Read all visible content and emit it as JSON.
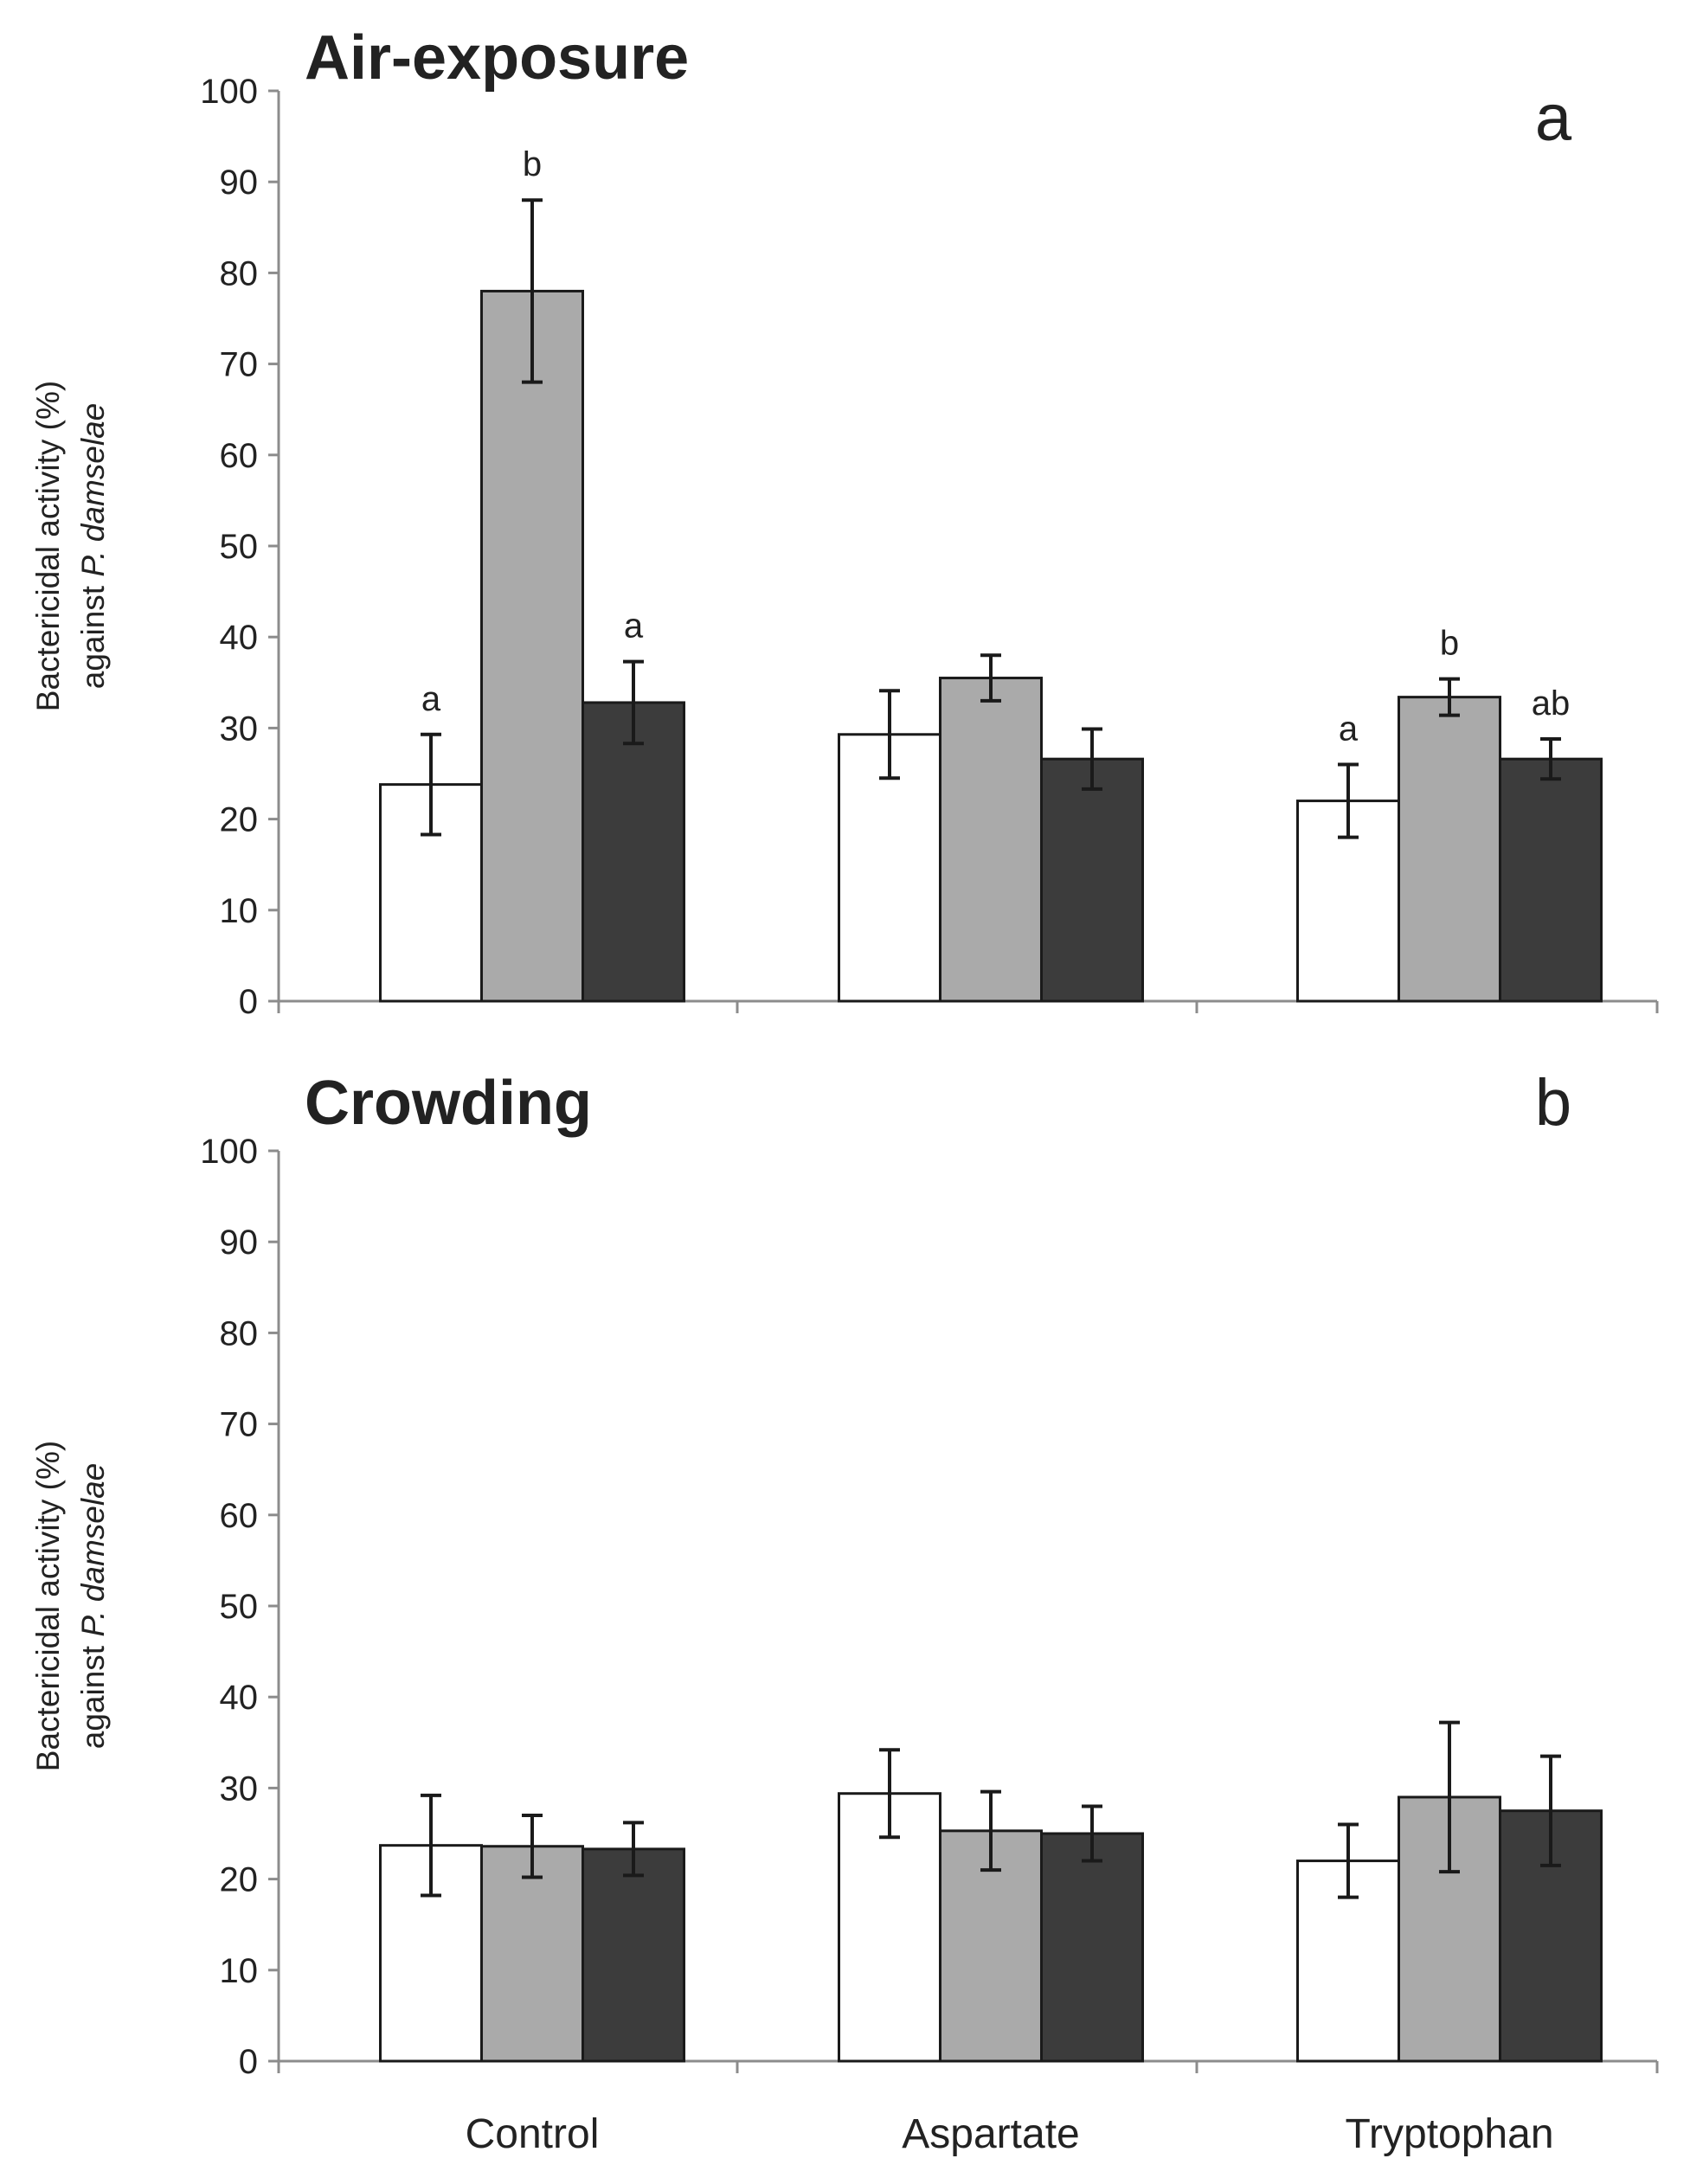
{
  "chart_data": [
    {
      "type": "bar",
      "title": "Air-exposure",
      "panel_label": "a",
      "ylabel_line1": "Bactericidal activity (%)",
      "ylabel_line2_prefix": "against ",
      "ylabel_line2_italic": "P. damselae",
      "ylim": [
        0,
        100
      ],
      "yticks": [
        "0",
        "10",
        "20",
        "30",
        "40",
        "50",
        "60",
        "70",
        "80",
        "90",
        "100"
      ],
      "categories": [
        "Control",
        "Aspartate",
        "Tryptophan"
      ],
      "series": [
        {
          "color": "#ffffff",
          "values": [
            23.8,
            29.3,
            22.0
          ],
          "errors": [
            5.5,
            4.8,
            4.0
          ],
          "sig": [
            "a",
            "",
            "a"
          ]
        },
        {
          "color": "#aaaaaa",
          "values": [
            78.0,
            35.5,
            33.4
          ],
          "errors": [
            10.0,
            2.5,
            2.0
          ],
          "sig": [
            "b",
            "",
            "b"
          ]
        },
        {
          "color": "#3c3c3c",
          "values": [
            32.8,
            26.6,
            26.6
          ],
          "errors": [
            4.5,
            3.3,
            2.2
          ],
          "sig": [
            "a",
            "",
            "ab"
          ]
        }
      ],
      "grid": false,
      "legend": "none"
    },
    {
      "type": "bar",
      "title": "Crowding",
      "panel_label": "b",
      "ylabel_line1": "Bactericidal activity (%)",
      "ylabel_line2_prefix": "against ",
      "ylabel_line2_italic": "P. damselae",
      "ylim": [
        0,
        100
      ],
      "yticks": [
        "0",
        "10",
        "20",
        "30",
        "40",
        "50",
        "60",
        "70",
        "80",
        "90",
        "100"
      ],
      "categories": [
        "Control",
        "Aspartate",
        "Tryptophan"
      ],
      "series": [
        {
          "color": "#ffffff",
          "values": [
            23.7,
            29.4,
            22.0
          ],
          "errors": [
            5.5,
            4.8,
            4.0
          ],
          "sig": [
            "",
            "",
            ""
          ]
        },
        {
          "color": "#aaaaaa",
          "values": [
            23.6,
            25.3,
            29.0
          ],
          "errors": [
            3.4,
            4.3,
            8.2
          ],
          "sig": [
            "",
            "",
            ""
          ]
        },
        {
          "color": "#3c3c3c",
          "values": [
            23.3,
            25.0,
            27.5
          ],
          "errors": [
            2.9,
            3.0,
            6.0
          ],
          "sig": [
            "",
            "",
            ""
          ]
        }
      ],
      "grid": false,
      "legend": "none"
    }
  ]
}
